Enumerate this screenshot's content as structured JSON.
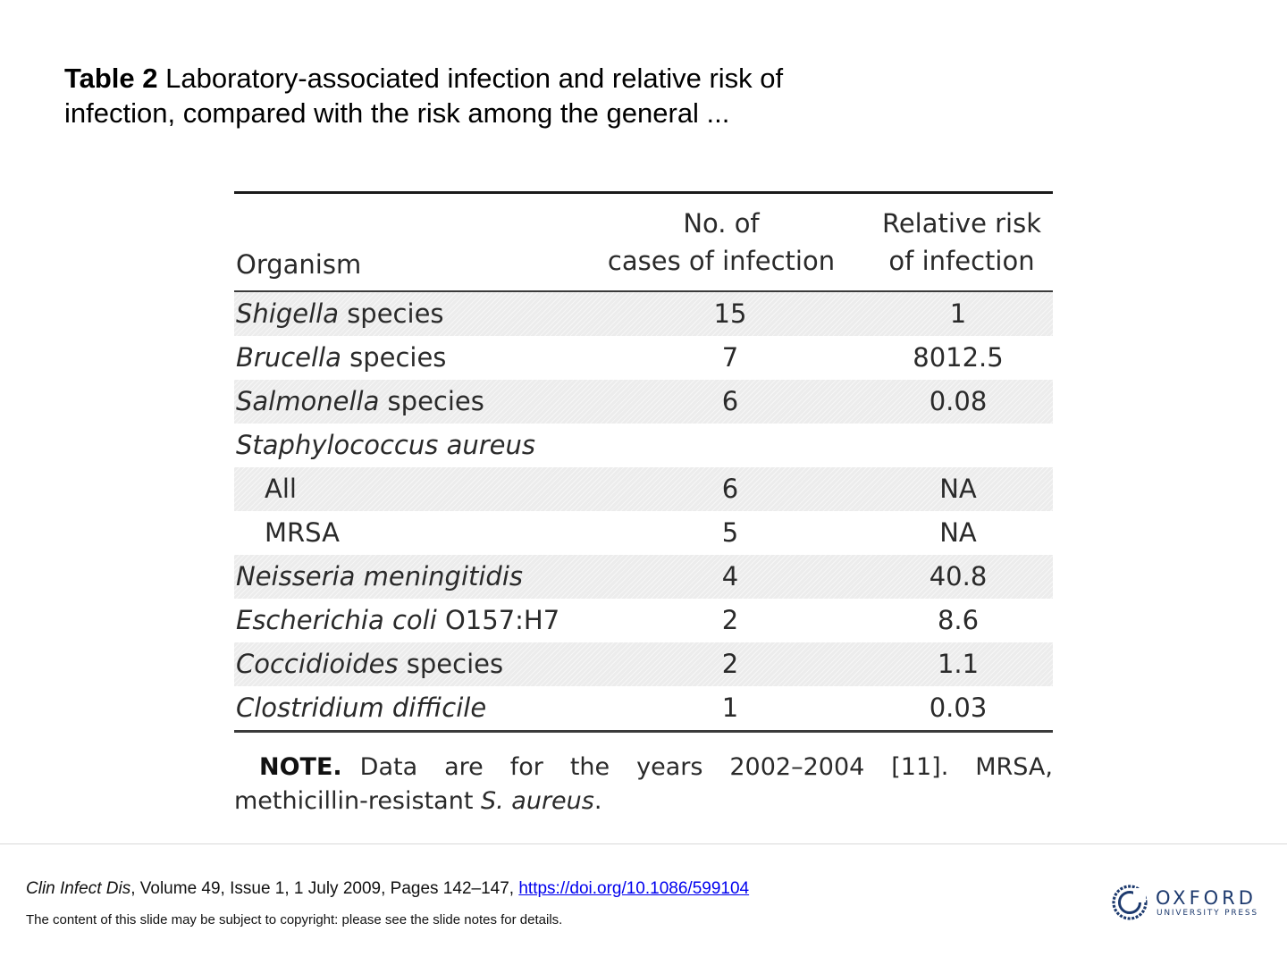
{
  "title": {
    "label": "Table 2",
    "text": " Laboratory-associated infection and relative risk of infection, compared with the risk among the general ..."
  },
  "table": {
    "headers": {
      "organism": "Organism",
      "cases_line1": "No. of",
      "cases_line2": "cases of infection",
      "rr_line1": "Relative risk",
      "rr_line2": "of infection"
    },
    "rows": [
      {
        "italic": "Shigella",
        "rest": " species",
        "cases": "15",
        "rr": "1"
      },
      {
        "italic": "Brucella",
        "rest": " species",
        "cases": "7",
        "rr": "8012.5"
      },
      {
        "italic": "Salmonella",
        "rest": " species",
        "cases": "6",
        "rr": "0.08"
      },
      {
        "italic": "Staphylococcus aureus",
        "rest": "",
        "cases": "",
        "rr": ""
      },
      {
        "italic": "",
        "rest": "All",
        "cases": "6",
        "rr": "NA"
      },
      {
        "italic": "",
        "rest": "MRSA",
        "cases": "5",
        "rr": "NA"
      },
      {
        "italic": "Neisseria meningitidis",
        "rest": "",
        "cases": "4",
        "rr": "40.8"
      },
      {
        "italic": "Escherichia coli",
        "rest": " O157:H7",
        "cases": "2",
        "rr": "8.6"
      },
      {
        "italic": "Coccidioides",
        "rest": " species",
        "cases": "2",
        "rr": "1.1"
      },
      {
        "italic": "Clostridium difficile",
        "rest": "",
        "cases": "1",
        "rr": "0.03"
      }
    ],
    "note": {
      "label": "NOTE.",
      "text": "Data are for the years 2002–2004 [11]. MRSA, methicillin-resistant ",
      "italic": "S. aureus",
      "end": "."
    }
  },
  "footer": {
    "journal": "Clin Infect Dis",
    "citation": ", Volume 49, Issue 1, 1 July 2009, Pages 142–147, ",
    "doi": "https://doi.org/10.1086/599104",
    "copyright": "The content of this slide may be subject to copyright: please see the slide notes for details."
  },
  "logo": {
    "name": "OXFORD",
    "sub": "UNIVERSITY PRESS",
    "icon": "oxford-logo-icon",
    "color": "#1d3a6e"
  }
}
